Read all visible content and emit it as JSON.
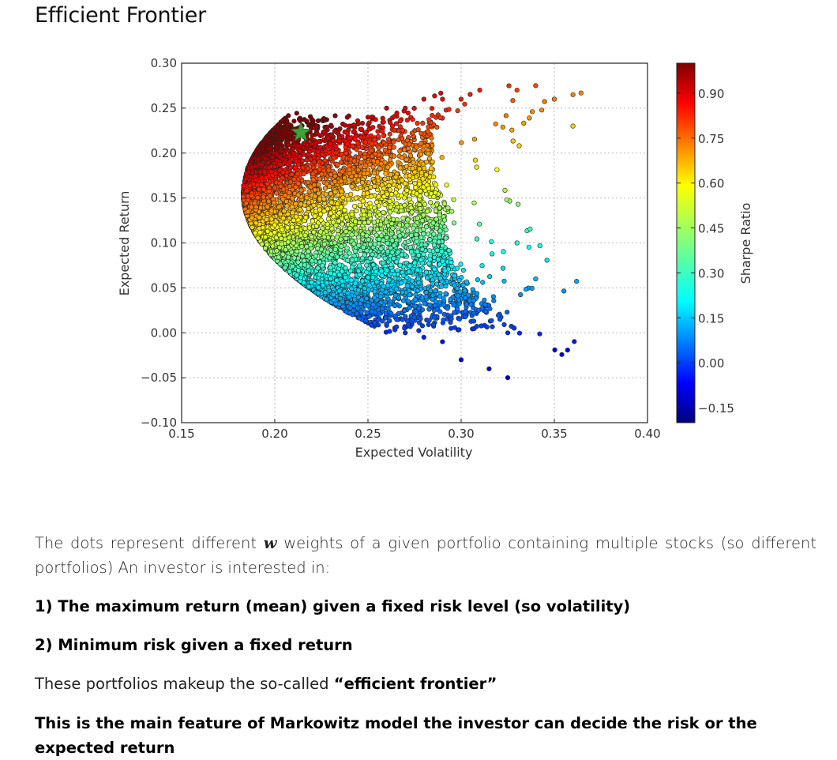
{
  "page": {
    "title": "Efficient Frontier"
  },
  "chart_data": {
    "type": "scatter",
    "xlabel": "Expected Volatility",
    "ylabel": "Expected Return",
    "xlim": [
      0.15,
      0.4
    ],
    "ylim": [
      -0.1,
      0.3
    ],
    "xticks": [
      "0.15",
      "0.20",
      "0.25",
      "0.30",
      "0.35",
      "0.40"
    ],
    "yticks": [
      "−0.10",
      "−0.05",
      "0.00",
      "0.05",
      "0.10",
      "0.15",
      "0.20",
      "0.25",
      "0.30"
    ],
    "grid": true,
    "colorbar": {
      "label": "Sharpe Ratio",
      "range": [
        -0.2,
        1.0
      ],
      "ticks": [
        "−0.15",
        "0.00",
        "0.15",
        "0.30",
        "0.45",
        "0.60",
        "0.75",
        "0.90"
      ],
      "colormap": "jet"
    },
    "marker_note": "dense cloud of portfolios; star marks max Sharpe portfolio",
    "points": [
      {
        "x": 0.185,
        "y": 0.158,
        "c": 0.95
      },
      {
        "x": 0.19,
        "y": 0.17,
        "c": 0.98
      },
      {
        "x": 0.19,
        "y": 0.14,
        "c": 0.8
      },
      {
        "x": 0.2,
        "y": 0.185,
        "c": 0.98
      },
      {
        "x": 0.2,
        "y": 0.12,
        "c": 0.65
      },
      {
        "x": 0.21,
        "y": 0.2,
        "c": 0.98
      },
      {
        "x": 0.21,
        "y": 0.1,
        "c": 0.5
      },
      {
        "x": 0.22,
        "y": 0.21,
        "c": 0.97
      },
      {
        "x": 0.22,
        "y": 0.08,
        "c": 0.38
      },
      {
        "x": 0.23,
        "y": 0.22,
        "c": 0.96
      },
      {
        "x": 0.23,
        "y": 0.06,
        "c": 0.28
      },
      {
        "x": 0.24,
        "y": 0.23,
        "c": 0.95
      },
      {
        "x": 0.24,
        "y": 0.04,
        "c": 0.2
      },
      {
        "x": 0.25,
        "y": 0.24,
        "c": 0.93
      },
      {
        "x": 0.25,
        "y": 0.03,
        "c": 0.13
      },
      {
        "x": 0.26,
        "y": 0.25,
        "c": 0.91
      },
      {
        "x": 0.26,
        "y": 0.01,
        "c": 0.05
      },
      {
        "x": 0.27,
        "y": 0.25,
        "c": 0.89
      },
      {
        "x": 0.27,
        "y": 0.0,
        "c": 0.0
      },
      {
        "x": 0.28,
        "y": 0.26,
        "c": 0.88
      },
      {
        "x": 0.28,
        "y": -0.005,
        "c": -0.05
      },
      {
        "x": 0.29,
        "y": 0.26,
        "c": 0.86
      },
      {
        "x": 0.29,
        "y": -0.01,
        "c": -0.1
      },
      {
        "x": 0.3,
        "y": 0.26,
        "c": 0.84
      },
      {
        "x": 0.3,
        "y": -0.03,
        "c": -0.15
      },
      {
        "x": 0.31,
        "y": 0.27,
        "c": 0.82
      },
      {
        "x": 0.315,
        "y": -0.04,
        "c": -0.18
      },
      {
        "x": 0.325,
        "y": -0.05,
        "c": -0.2
      },
      {
        "x": 0.33,
        "y": 0.27,
        "c": 0.8
      },
      {
        "x": 0.34,
        "y": 0.275,
        "c": 0.78
      },
      {
        "x": 0.35,
        "y": 0.26,
        "c": 0.74
      },
      {
        "x": 0.36,
        "y": 0.265,
        "c": 0.72
      },
      {
        "x": 0.36,
        "y": 0.23,
        "c": 0.64
      },
      {
        "x": 0.34,
        "y": 0.06,
        "c": 0.15
      },
      {
        "x": 0.33,
        "y": 0.1,
        "c": 0.3
      },
      {
        "x": 0.325,
        "y": 0.0,
        "c": -0.1
      }
    ],
    "highlight": {
      "x": 0.214,
      "y": 0.223,
      "label": "star"
    }
  },
  "text": {
    "p1a": "The dots represent different ",
    "p1w": "w",
    "p1b": " weights of a given portfolio containing multiple stocks (so different portfolios) An investor is interested in:",
    "p2": "1) The maximum return (mean) given a fixed risk level (so volatility)",
    "p3": "2) Minimum risk given a fixed return",
    "p4a": "These portfolios makeup the so-called ",
    "p4b": "“efficient frontier”",
    "p5": "This is the main feature of Markowitz model the investor can decide the risk or the expected return"
  }
}
